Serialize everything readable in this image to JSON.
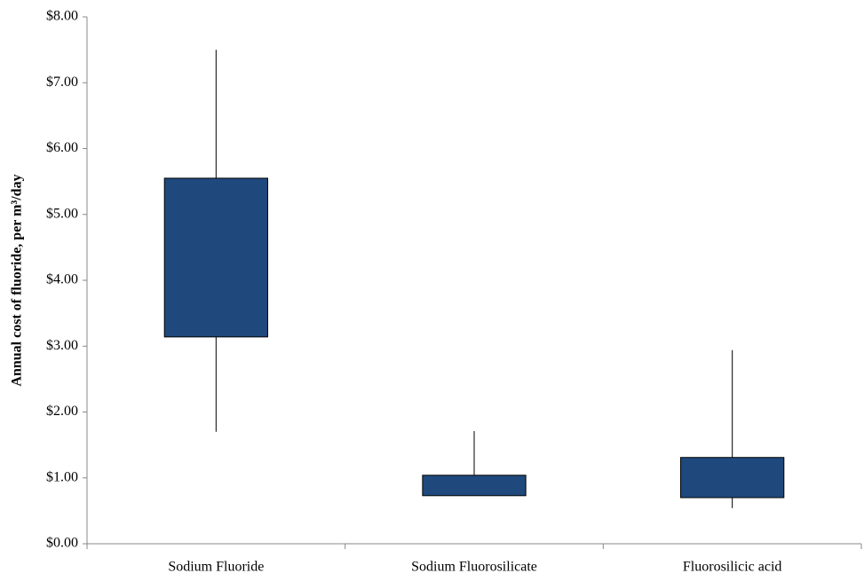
{
  "chart_data": {
    "type": "box",
    "y_axis_label": "Annual cost of fluoride, per m³/day",
    "categories": [
      "Sodium Fluoride",
      "Sodium Fluorosilicate",
      "Fluorosilicic acid"
    ],
    "low": [
      1.7,
      0.73,
      0.54
    ],
    "q1": [
      3.14,
      0.73,
      0.7
    ],
    "q3": [
      5.55,
      1.04,
      1.31
    ],
    "high": [
      7.5,
      1.71,
      2.94
    ],
    "color": "#1f497d",
    "ylim": [
      0,
      8
    ],
    "yticks": [
      {
        "value": 0,
        "label": "$0.00"
      },
      {
        "value": 1,
        "label": "$1.00"
      },
      {
        "value": 2,
        "label": "$2.00"
      },
      {
        "value": 3,
        "label": "$3.00"
      },
      {
        "value": 4,
        "label": "$4.00"
      },
      {
        "value": 5,
        "label": "$5.00"
      },
      {
        "value": 6,
        "label": "$6.00"
      },
      {
        "value": 7,
        "label": "$7.00"
      },
      {
        "value": 8,
        "label": "$8.00"
      }
    ],
    "grid": false
  }
}
